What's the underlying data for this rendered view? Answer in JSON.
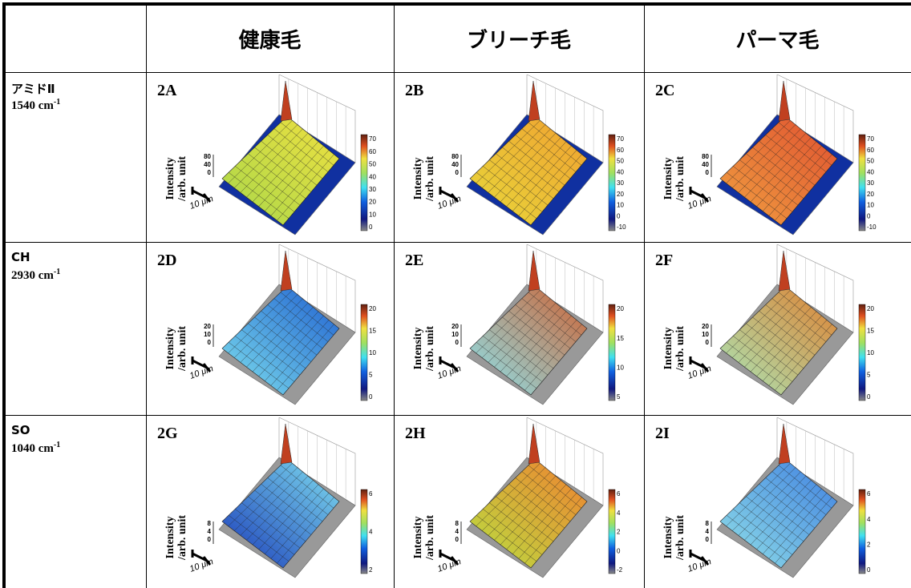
{
  "header": {
    "columns": [
      "健康毛",
      "ブリーチ毛",
      "パーマ毛"
    ]
  },
  "rows": [
    {
      "name": "アミドⅡ",
      "wavenumber": "1540 cm",
      "exponent": "-1"
    },
    {
      "name": "CH",
      "wavenumber": "2930 cm",
      "exponent": "-1"
    },
    {
      "name": "SO",
      "wavenumber": "1040 cm",
      "exponent": "-1"
    }
  ],
  "axis_label": [
    "Intensity",
    "/arb. unit"
  ],
  "scale_bar": "10 μm",
  "panels": [
    [
      {
        "label": "2A",
        "z_ticks": [
          80,
          40,
          0
        ],
        "colorbar_ticks": [
          70,
          60,
          50,
          40,
          30,
          20,
          10,
          0
        ]
      },
      {
        "label": "2B",
        "z_ticks": [
          80,
          40,
          0
        ],
        "colorbar_ticks": [
          70,
          60,
          50,
          40,
          30,
          20,
          10,
          0,
          -10
        ]
      },
      {
        "label": "2C",
        "z_ticks": [
          80,
          40,
          0
        ],
        "colorbar_ticks": [
          70,
          60,
          50,
          40,
          30,
          20,
          10,
          0,
          -10
        ]
      }
    ],
    [
      {
        "label": "2D",
        "z_ticks": [
          20,
          10,
          0
        ],
        "colorbar_ticks": [
          20,
          15,
          10,
          5,
          0
        ]
      },
      {
        "label": "2E",
        "z_ticks": [
          20,
          10,
          0
        ],
        "colorbar_ticks": [
          20,
          15,
          10,
          5
        ]
      },
      {
        "label": "2F",
        "z_ticks": [
          20,
          10,
          0
        ],
        "colorbar_ticks": [
          20,
          15,
          10,
          5,
          0
        ]
      }
    ],
    [
      {
        "label": "2G",
        "z_ticks": [
          8,
          4,
          0
        ],
        "colorbar_ticks": [
          6,
          4,
          2
        ]
      },
      {
        "label": "2H",
        "z_ticks": [
          8,
          4,
          0
        ],
        "colorbar_ticks": [
          6,
          4,
          2,
          0,
          -2
        ]
      },
      {
        "label": "2I",
        "z_ticks": [
          8,
          4,
          0
        ],
        "colorbar_ticks": [
          6,
          4,
          2,
          0
        ]
      }
    ]
  ]
}
